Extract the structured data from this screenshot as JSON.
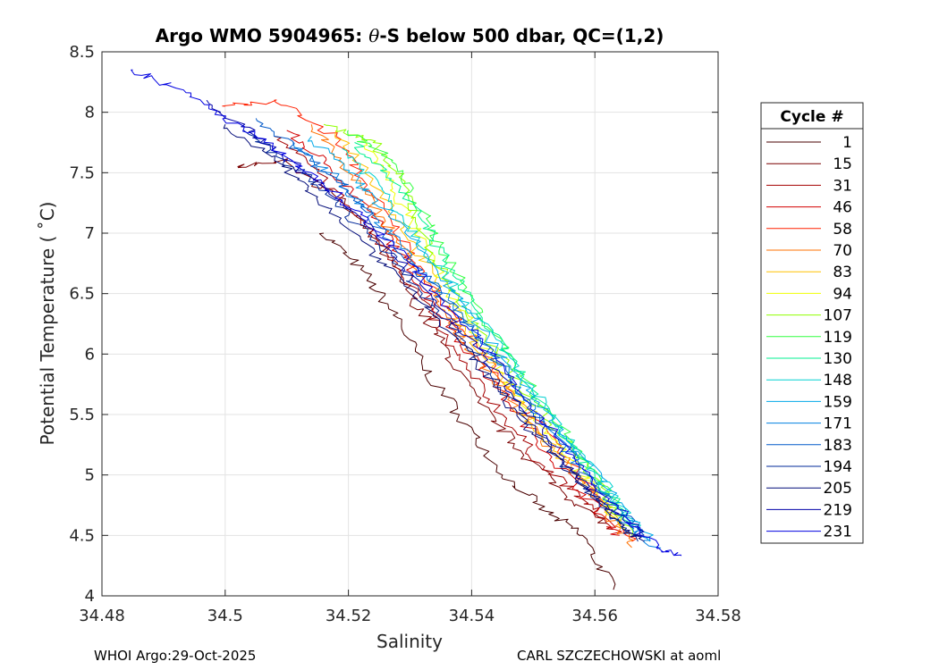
{
  "chart_data": {
    "type": "line",
    "title": {
      "prefix": "Argo WMO 5904965: ",
      "symbol": "θ",
      "suffix": "-S below 500 dbar,  QC=(1,2)"
    },
    "xlabel": "Salinity",
    "ylabel": "Potential Temperature ( ˚C)",
    "xlim": [
      34.48,
      34.58
    ],
    "ylim": [
      4,
      8.5
    ],
    "xticks": [
      34.48,
      34.5,
      34.52,
      34.54,
      34.56,
      34.58
    ],
    "xtick_labels": [
      "34.48",
      "34.5",
      "34.52",
      "34.54",
      "34.56",
      "34.58"
    ],
    "yticks": [
      4,
      4.5,
      5,
      5.5,
      6,
      6.5,
      7,
      7.5,
      8,
      8.5
    ],
    "ytick_labels": [
      "4",
      "4.5",
      "5",
      "5.5",
      "6",
      "6.5",
      "7",
      "7.5",
      "8",
      "8.5"
    ],
    "grid": true,
    "legend_title": "Cycle #",
    "legend_position": "outside-right",
    "series": [
      {
        "name": "1",
        "color": "#4a0000",
        "points": [
          [
            34.516,
            7.0
          ],
          [
            34.522,
            6.7
          ],
          [
            34.528,
            6.3
          ],
          [
            34.532,
            5.9
          ],
          [
            34.538,
            5.5
          ],
          [
            34.545,
            5.0
          ],
          [
            34.552,
            4.7
          ],
          [
            34.558,
            4.5
          ],
          [
            34.563,
            4.05
          ]
        ]
      },
      {
        "name": "15",
        "color": "#7a0000",
        "points": [
          [
            34.502,
            7.55
          ],
          [
            34.51,
            7.6
          ],
          [
            34.518,
            7.3
          ],
          [
            34.525,
            6.9
          ],
          [
            34.53,
            6.5
          ],
          [
            34.535,
            6.1
          ],
          [
            34.541,
            5.6
          ],
          [
            34.548,
            5.2
          ],
          [
            34.555,
            4.85
          ],
          [
            34.562,
            4.6
          ]
        ]
      },
      {
        "name": "31",
        "color": "#a50000",
        "points": [
          [
            34.508,
            7.8
          ],
          [
            34.515,
            7.5
          ],
          [
            34.522,
            7.1
          ],
          [
            34.528,
            6.75
          ],
          [
            34.533,
            6.35
          ],
          [
            34.538,
            5.95
          ],
          [
            34.545,
            5.5
          ],
          [
            34.551,
            5.1
          ],
          [
            34.558,
            4.8
          ],
          [
            34.563,
            4.55
          ]
        ]
      },
      {
        "name": "46",
        "color": "#d20000",
        "points": [
          [
            34.51,
            7.85
          ],
          [
            34.517,
            7.55
          ],
          [
            34.523,
            7.2
          ],
          [
            34.529,
            6.8
          ],
          [
            34.534,
            6.4
          ],
          [
            34.54,
            6.0
          ],
          [
            34.546,
            5.6
          ],
          [
            34.553,
            5.15
          ],
          [
            34.559,
            4.8
          ],
          [
            34.564,
            4.5
          ]
        ]
      },
      {
        "name": "58",
        "color": "#ff2000",
        "points": [
          [
            34.5,
            8.05
          ],
          [
            34.508,
            8.1
          ],
          [
            34.518,
            7.8
          ],
          [
            34.524,
            7.3
          ],
          [
            34.53,
            6.85
          ],
          [
            34.535,
            6.45
          ],
          [
            34.541,
            6.05
          ],
          [
            34.548,
            5.6
          ],
          [
            34.555,
            5.15
          ],
          [
            34.561,
            4.8
          ],
          [
            34.566,
            4.45
          ]
        ]
      },
      {
        "name": "70",
        "color": "#ff7000",
        "points": [
          [
            34.514,
            7.9
          ],
          [
            34.52,
            7.5
          ],
          [
            34.526,
            7.1
          ],
          [
            34.531,
            6.7
          ],
          [
            34.536,
            6.3
          ],
          [
            34.542,
            5.9
          ],
          [
            34.549,
            5.45
          ],
          [
            34.556,
            5.05
          ],
          [
            34.562,
            4.7
          ],
          [
            34.566,
            4.4
          ]
        ]
      },
      {
        "name": "83",
        "color": "#ffc000",
        "points": [
          [
            34.518,
            7.85
          ],
          [
            34.524,
            7.45
          ],
          [
            34.529,
            7.05
          ],
          [
            34.534,
            6.6
          ],
          [
            34.539,
            6.2
          ],
          [
            34.545,
            5.8
          ],
          [
            34.551,
            5.35
          ],
          [
            34.558,
            4.95
          ],
          [
            34.564,
            4.6
          ]
        ]
      },
      {
        "name": "94",
        "color": "#f0ff00",
        "points": [
          [
            34.522,
            7.8
          ],
          [
            34.527,
            7.4
          ],
          [
            34.531,
            7.0
          ],
          [
            34.536,
            6.55
          ],
          [
            34.541,
            6.15
          ],
          [
            34.547,
            5.7
          ],
          [
            34.553,
            5.3
          ],
          [
            34.56,
            4.9
          ],
          [
            34.565,
            4.55
          ]
        ]
      },
      {
        "name": "107",
        "color": "#90ff00",
        "points": [
          [
            34.516,
            7.9
          ],
          [
            34.524,
            7.75
          ],
          [
            34.529,
            7.4
          ],
          [
            34.532,
            7.0
          ],
          [
            34.536,
            6.6
          ],
          [
            34.541,
            6.2
          ],
          [
            34.548,
            5.75
          ],
          [
            34.555,
            5.3
          ],
          [
            34.561,
            4.9
          ],
          [
            34.566,
            4.5
          ]
        ]
      },
      {
        "name": "119",
        "color": "#30ff40",
        "points": [
          [
            34.52,
            7.85
          ],
          [
            34.527,
            7.6
          ],
          [
            34.531,
            7.25
          ],
          [
            34.535,
            6.9
          ],
          [
            34.54,
            6.45
          ],
          [
            34.546,
            6.0
          ],
          [
            34.552,
            5.55
          ],
          [
            34.559,
            5.1
          ],
          [
            34.565,
            4.65
          ]
        ]
      },
      {
        "name": "130",
        "color": "#00f090",
        "points": [
          [
            34.521,
            7.75
          ],
          [
            34.527,
            7.45
          ],
          [
            34.532,
            7.1
          ],
          [
            34.536,
            6.75
          ],
          [
            34.541,
            6.35
          ],
          [
            34.547,
            5.9
          ],
          [
            34.553,
            5.45
          ],
          [
            34.56,
            5.0
          ],
          [
            34.566,
            4.6
          ]
        ]
      },
      {
        "name": "148",
        "color": "#00d0d0",
        "points": [
          [
            34.519,
            7.7
          ],
          [
            34.525,
            7.4
          ],
          [
            34.53,
            7.05
          ],
          [
            34.535,
            6.7
          ],
          [
            34.541,
            6.3
          ],
          [
            34.548,
            5.85
          ],
          [
            34.554,
            5.4
          ],
          [
            34.561,
            4.95
          ],
          [
            34.567,
            4.55
          ]
        ]
      },
      {
        "name": "159",
        "color": "#00a8e8",
        "points": [
          [
            34.514,
            7.8
          ],
          [
            34.52,
            7.5
          ],
          [
            34.526,
            7.2
          ],
          [
            34.532,
            6.85
          ],
          [
            34.538,
            6.45
          ],
          [
            34.544,
            6.05
          ],
          [
            34.551,
            5.6
          ],
          [
            34.558,
            5.15
          ],
          [
            34.565,
            4.7
          ],
          [
            34.569,
            4.45
          ]
        ]
      },
      {
        "name": "171",
        "color": "#0080e0",
        "points": [
          [
            34.511,
            7.75
          ],
          [
            34.518,
            7.45
          ],
          [
            34.524,
            7.15
          ],
          [
            34.53,
            6.8
          ],
          [
            34.537,
            6.4
          ],
          [
            34.544,
            5.95
          ],
          [
            34.551,
            5.5
          ],
          [
            34.558,
            5.05
          ],
          [
            34.565,
            4.6
          ],
          [
            34.57,
            4.4
          ]
        ]
      },
      {
        "name": "183",
        "color": "#0058c8",
        "points": [
          [
            34.505,
            7.95
          ],
          [
            34.513,
            7.65
          ],
          [
            34.52,
            7.35
          ],
          [
            34.526,
            7.0
          ],
          [
            34.533,
            6.6
          ],
          [
            34.54,
            6.2
          ],
          [
            34.547,
            5.75
          ],
          [
            34.554,
            5.3
          ],
          [
            34.561,
            4.85
          ],
          [
            34.568,
            4.5
          ]
        ]
      },
      {
        "name": "194",
        "color": "#00289a",
        "points": [
          [
            34.503,
            7.85
          ],
          [
            34.511,
            7.55
          ],
          [
            34.518,
            7.25
          ],
          [
            34.525,
            6.9
          ],
          [
            34.532,
            6.5
          ],
          [
            34.539,
            6.1
          ],
          [
            34.546,
            5.65
          ],
          [
            34.553,
            5.2
          ],
          [
            34.56,
            4.8
          ],
          [
            34.567,
            4.45
          ]
        ]
      },
      {
        "name": "205",
        "color": "#000a78",
        "points": [
          [
            34.5,
            7.9
          ],
          [
            34.508,
            7.6
          ],
          [
            34.515,
            7.3
          ],
          [
            34.522,
            6.95
          ],
          [
            34.529,
            6.6
          ],
          [
            34.536,
            6.2
          ],
          [
            34.543,
            5.8
          ],
          [
            34.55,
            5.35
          ],
          [
            34.557,
            4.95
          ],
          [
            34.564,
            4.6
          ],
          [
            34.568,
            4.45
          ]
        ]
      },
      {
        "name": "219",
        "color": "#0000a8",
        "points": [
          [
            34.497,
            8.1
          ],
          [
            34.505,
            7.8
          ],
          [
            34.513,
            7.5
          ],
          [
            34.52,
            7.2
          ],
          [
            34.527,
            6.85
          ],
          [
            34.534,
            6.45
          ],
          [
            34.541,
            6.05
          ],
          [
            34.548,
            5.6
          ],
          [
            34.555,
            5.15
          ],
          [
            34.562,
            4.75
          ],
          [
            34.568,
            4.5
          ]
        ]
      },
      {
        "name": "231",
        "color": "#0000e0",
        "points": [
          [
            34.485,
            8.35
          ],
          [
            34.492,
            8.2
          ],
          [
            34.5,
            7.95
          ],
          [
            34.508,
            7.7
          ],
          [
            34.516,
            7.4
          ],
          [
            34.523,
            7.1
          ],
          [
            34.53,
            6.75
          ],
          [
            34.537,
            6.35
          ],
          [
            34.544,
            5.95
          ],
          [
            34.551,
            5.5
          ],
          [
            34.558,
            5.05
          ],
          [
            34.565,
            4.65
          ],
          [
            34.57,
            4.4
          ],
          [
            34.574,
            4.33
          ]
        ]
      }
    ]
  },
  "footer": {
    "left": "WHOI Argo:29-Oct-2025",
    "right": "CARL SZCZECHOWSKI at aoml"
  }
}
